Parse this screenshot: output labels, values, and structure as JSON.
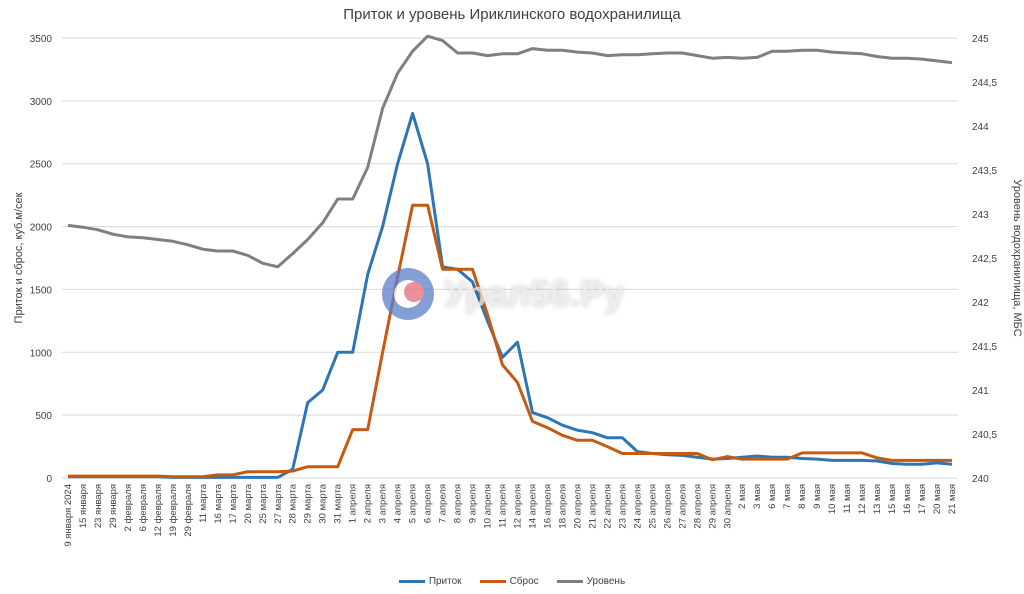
{
  "title": "Приток и уровень Ириклинского водохранилища",
  "watermark": "Урал56.Ру",
  "legend": [
    {
      "label": "Приток",
      "color": "#2e75b6"
    },
    {
      "label": "Сброс",
      "color": "#c55a11"
    },
    {
      "label": "Уровень",
      "color": "#7f7f7f"
    }
  ],
  "chart_data": {
    "type": "line",
    "title": "Приток и уровень Ириклинского водохранилища",
    "xlabel": "",
    "ylabel": "Приток и сброс, куб.м/сек",
    "y2label": "Уровень водохранилища, МБС",
    "ylim": [
      0,
      3500
    ],
    "y2lim": [
      240,
      245
    ],
    "yticks": [
      "0",
      "500",
      "1000",
      "1500",
      "2000",
      "2500",
      "3000",
      "3500"
    ],
    "y2ticks": [
      "240",
      "240,5",
      "241",
      "241,5",
      "242",
      "242,5",
      "243",
      "243,5",
      "244",
      "244,5",
      "245"
    ],
    "grid": true,
    "legend_position": "bottom",
    "categories": [
      "9 января 2024",
      "15 января",
      "23 января",
      "29 января",
      "2 февраля",
      "6 февраля",
      "12 февраля",
      "19 февраля",
      "29 февраля",
      "11 марта",
      "16 марта",
      "17 марта",
      "20 марта",
      "25 марта",
      "27 марта",
      "28 марта",
      "29 марта",
      "30 марта",
      "31 марта",
      "1 апреля",
      "2 апреля",
      "3 апреля",
      "4 апреля",
      "5 апреля",
      "6 апреля",
      "7 апреля",
      "8 апреля",
      "9 апреля",
      "10 апреля",
      "11 апреля",
      "12 апреля",
      "14 апреля",
      "16 апреля",
      "18 апреля",
      "20 апреля",
      "21 апреля",
      "22 апреля",
      "23 апреля",
      "24 апреля",
      "25 апреля",
      "26 апреля",
      "27 апреля",
      "28 апреля",
      "29 апреля",
      "30 апреля",
      "2 мая",
      "3 мая",
      "6 мая",
      "7 мая",
      "8 мая",
      "9 мая",
      "10 мая",
      "11 мая",
      "12 мая",
      "13 мая",
      "15 мая",
      "16 мая",
      "17 мая",
      "20 мая",
      "21 мая"
    ],
    "series": [
      {
        "name": "Приток",
        "axis": "left",
        "color": "#2e75b6",
        "values": [
          10,
          10,
          10,
          10,
          10,
          10,
          10,
          5,
          5,
          5,
          5,
          5,
          5,
          5,
          5,
          70,
          600,
          700,
          1000,
          1000,
          1620,
          2000,
          2500,
          2900,
          2500,
          1680,
          1660,
          1560,
          1250,
          960,
          1080,
          520,
          480,
          420,
          380,
          360,
          320,
          320,
          210,
          195,
          185,
          180,
          165,
          150,
          155,
          165,
          175,
          165,
          165,
          155,
          150,
          140,
          140,
          140,
          135,
          115,
          110,
          110,
          120,
          110
        ]
      },
      {
        "name": "Сброс",
        "axis": "left",
        "color": "#c55a11",
        "values": [
          15,
          15,
          15,
          15,
          15,
          15,
          15,
          10,
          10,
          10,
          25,
          25,
          50,
          50,
          50,
          55,
          90,
          90,
          90,
          385,
          385,
          1000,
          1600,
          2170,
          2170,
          1660,
          1660,
          1660,
          1300,
          900,
          760,
          450,
          400,
          340,
          300,
          300,
          250,
          195,
          195,
          195,
          195,
          195,
          195,
          145,
          170,
          150,
          150,
          150,
          150,
          200,
          200,
          200,
          200,
          200,
          160,
          140,
          140,
          140,
          140,
          140
        ]
      },
      {
        "name": "Уровень",
        "axis": "right",
        "color": "#7f7f7f",
        "values": [
          242.87,
          242.85,
          242.82,
          242.77,
          242.74,
          242.73,
          242.71,
          242.69,
          242.65,
          242.6,
          242.58,
          242.58,
          242.53,
          242.44,
          242.4,
          242.55,
          242.71,
          242.9,
          243.17,
          243.17,
          243.53,
          244.2,
          244.6,
          244.85,
          245.02,
          244.97,
          244.83,
          244.83,
          244.8,
          244.82,
          244.82,
          244.88,
          244.86,
          244.86,
          244.84,
          244.83,
          244.8,
          244.81,
          244.81,
          244.82,
          244.83,
          244.83,
          244.8,
          244.77,
          244.78,
          244.77,
          244.78,
          244.85,
          244.85,
          244.86,
          244.86,
          244.84,
          244.83,
          244.82,
          244.79,
          244.77,
          244.77,
          244.76,
          244.74,
          244.72
        ]
      }
    ]
  }
}
